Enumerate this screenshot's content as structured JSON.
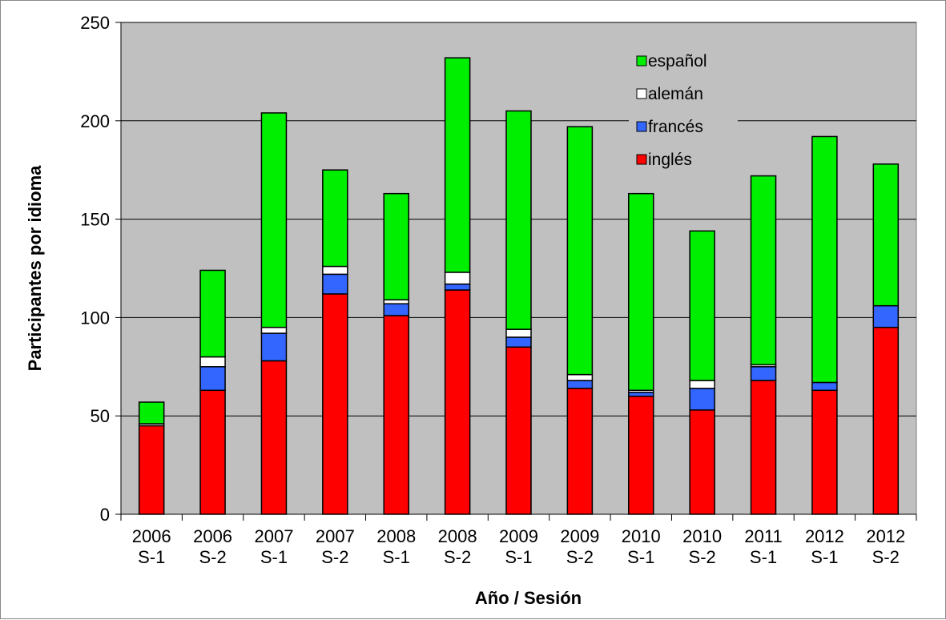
{
  "chart_data": {
    "type": "bar",
    "stacked": true,
    "categories": [
      [
        "2006",
        "S-1"
      ],
      [
        "2006",
        "S-2"
      ],
      [
        "2007",
        "S-1"
      ],
      [
        "2007",
        "S-2"
      ],
      [
        "2008",
        "S-1"
      ],
      [
        "2008",
        "S-2"
      ],
      [
        "2009",
        "S-1"
      ],
      [
        "2009",
        "S-2"
      ],
      [
        "2010",
        "S-1"
      ],
      [
        "2010",
        "S-2"
      ],
      [
        "2011",
        "S-1"
      ],
      [
        "2012",
        "S-1"
      ],
      [
        "2012",
        "S-2"
      ]
    ],
    "series": [
      {
        "name": "inglés",
        "color": "#ff0000",
        "values": [
          45,
          63,
          78,
          112,
          101,
          114,
          85,
          64,
          60,
          53,
          68,
          63,
          95
        ]
      },
      {
        "name": "francés",
        "color": "#3366ff",
        "values": [
          0,
          12,
          14,
          10,
          6,
          3,
          5,
          4,
          2,
          11,
          7,
          4,
          11
        ]
      },
      {
        "name": "alemán",
        "color": "#ffffff",
        "values": [
          1,
          5,
          3,
          4,
          2,
          6,
          4,
          3,
          1,
          4,
          1,
          0,
          0
        ]
      },
      {
        "name": "español",
        "color": "#00ee00",
        "values": [
          11,
          44,
          109,
          49,
          54,
          109,
          111,
          126,
          100,
          76,
          96,
          125,
          72
        ]
      }
    ],
    "title": "",
    "xlabel": "Año / Sesión",
    "ylabel": "Participantes por idioma",
    "ylim": [
      0,
      250
    ],
    "yticks": [
      0,
      50,
      100,
      150,
      200,
      250
    ],
    "grid": true,
    "plot_background": "#c0c0c0",
    "legend_position": "top-right",
    "legend_order": [
      "español",
      "alemán",
      "francés",
      "inglés"
    ]
  }
}
